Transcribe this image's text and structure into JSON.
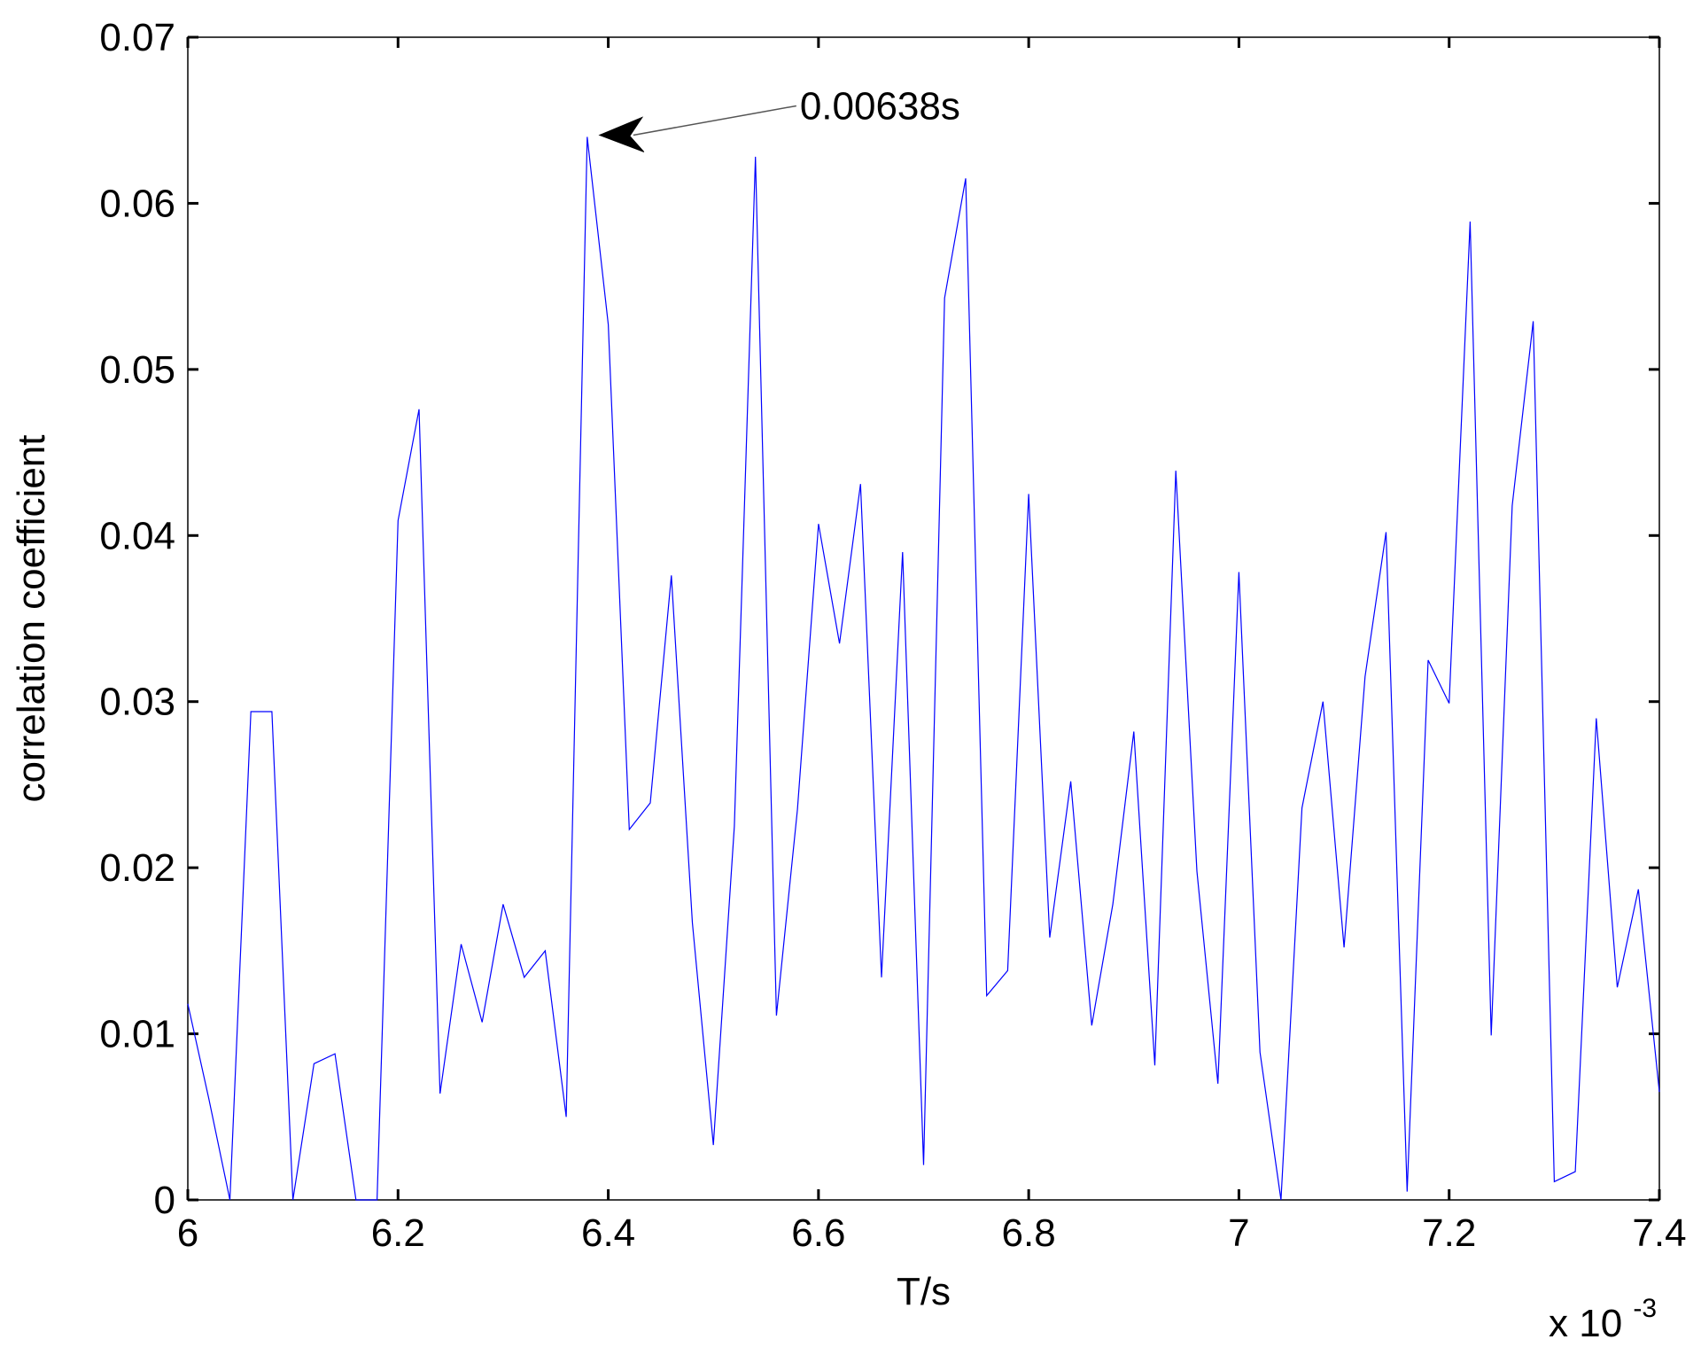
{
  "chart_data": {
    "type": "line",
    "xlabel": "T/s",
    "ylabel": "correlation coefficient",
    "x_multiplier": {
      "base": "x 10",
      "exponent": "-3"
    },
    "xlim": [
      6.0,
      7.4
    ],
    "ylim": [
      0,
      0.07
    ],
    "x_ticks": [
      6.0,
      6.2,
      6.4,
      6.6,
      6.8,
      7.0,
      7.2,
      7.4
    ],
    "x_tick_labels": [
      "6",
      "6.2",
      "6.4",
      "6.6",
      "6.8",
      "7",
      "7.2",
      "7.4"
    ],
    "y_ticks": [
      0,
      0.01,
      0.02,
      0.03,
      0.04,
      0.05,
      0.06,
      0.07
    ],
    "y_tick_labels": [
      "0",
      "0.01",
      "0.02",
      "0.03",
      "0.04",
      "0.05",
      "0.06",
      "0.07"
    ],
    "grid": false,
    "series": [
      {
        "color": "#0000ff",
        "x": [
          6.0,
          6.02,
          6.04,
          6.06,
          6.08,
          6.1,
          6.12,
          6.14,
          6.16,
          6.18,
          6.2,
          6.22,
          6.24,
          6.26,
          6.28,
          6.3,
          6.32,
          6.34,
          6.36,
          6.38,
          6.4,
          6.42,
          6.44,
          6.46,
          6.48,
          6.5,
          6.52,
          6.54,
          6.56,
          6.58,
          6.6,
          6.62,
          6.64,
          6.66,
          6.68,
          6.7,
          6.72,
          6.74,
          6.76,
          6.78,
          6.8,
          6.82,
          6.84,
          6.86,
          6.88,
          6.9,
          6.92,
          6.94,
          6.96,
          6.98,
          7.0,
          7.02,
          7.04,
          7.06,
          7.08,
          7.1,
          7.12,
          7.14,
          7.16,
          7.18,
          7.2,
          7.22,
          7.24,
          7.26,
          7.28,
          7.3,
          7.32,
          7.34,
          7.36,
          7.38,
          7.4
        ],
        "y": [
          0.0118,
          0.0061,
          0.0,
          0.0294,
          0.0294,
          0.0,
          0.0082,
          0.0088,
          0.0,
          0.0,
          0.0409,
          0.0476,
          0.0064,
          0.0154,
          0.0107,
          0.0178,
          0.0134,
          0.015,
          0.005,
          0.064,
          0.0527,
          0.0223,
          0.0239,
          0.0376,
          0.0167,
          0.0033,
          0.0225,
          0.0628,
          0.0111,
          0.0235,
          0.0407,
          0.0335,
          0.0431,
          0.0134,
          0.039,
          0.0021,
          0.0543,
          0.0615,
          0.0123,
          0.0138,
          0.0425,
          0.0158,
          0.0252,
          0.0105,
          0.0178,
          0.0282,
          0.0081,
          0.0439,
          0.0198,
          0.007,
          0.0378,
          0.0089,
          0.0,
          0.0236,
          0.03,
          0.0152,
          0.0315,
          0.0402,
          0.0005,
          0.0325,
          0.0299,
          0.0589,
          0.0099,
          0.0418,
          0.0529,
          0.0011,
          0.0017,
          0.029,
          0.0128,
          0.0187,
          0.0065
        ]
      }
    ],
    "annotations": [
      {
        "text": "0.00638s",
        "x": 6.38,
        "y": 0.064
      }
    ]
  }
}
